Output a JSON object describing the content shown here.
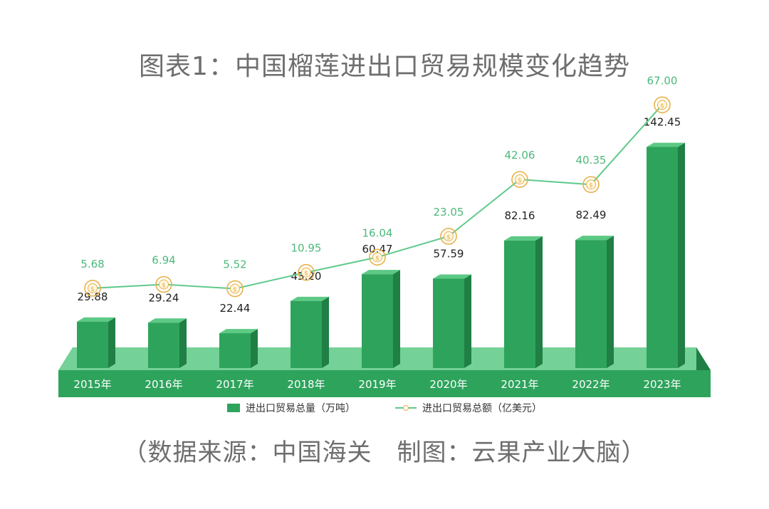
{
  "title": "图表1：中国榴莲进出口贸易规模变化趋势",
  "source": "（数据来源：中国海关　制图：云果产业大脑）",
  "colors": {
    "bar_front": "#2ea35c",
    "bar_side": "#1f7f44",
    "bar_top": "#5cc985",
    "line": "#5fc98b",
    "marker": "#e8b14a",
    "value_label_line": "#4cb97a",
    "value_label_bar": "#222222"
  },
  "chart_data": {
    "type": "bar",
    "categories": [
      "2015年",
      "2016年",
      "2017年",
      "2018年",
      "2019年",
      "2020年",
      "2021年",
      "2022年",
      "2023年"
    ],
    "series": [
      {
        "name": "进出口贸易总量（万吨）",
        "type": "bar",
        "values": [
          29.88,
          29.24,
          22.44,
          43.2,
          60.47,
          57.59,
          82.16,
          82.49,
          142.45
        ]
      },
      {
        "name": "进出口贸易总额（亿美元）",
        "type": "line",
        "values": [
          5.68,
          6.94,
          5.52,
          10.95,
          16.04,
          23.05,
          42.06,
          40.35,
          67.0
        ]
      }
    ],
    "labels_bar": [
      "29.88",
      "29.24",
      "22.44",
      "43.20",
      "60.47",
      "57.59",
      "82.16",
      "82.49",
      "142.45"
    ],
    "labels_line": [
      "5.68",
      "6.94",
      "5.52",
      "10.95",
      "16.04",
      "23.05",
      "42.06",
      "40.35",
      "67.00"
    ],
    "legend_position": "bottom",
    "grid": false
  }
}
